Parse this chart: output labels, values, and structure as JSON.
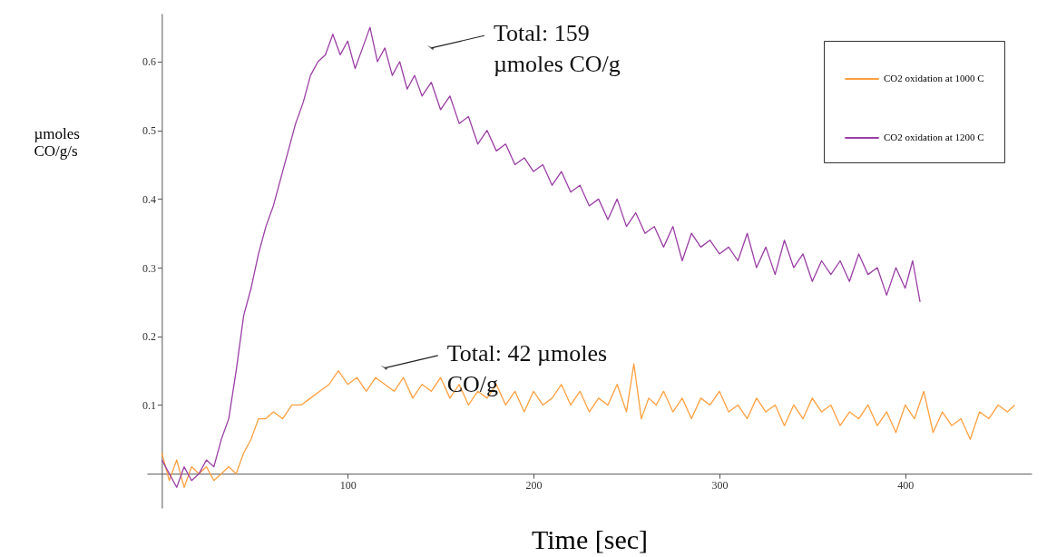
{
  "chart_data": {
    "type": "line",
    "xlabel": "Time [sec]",
    "ylabel": "µmoles\nCO/g/s",
    "xlim": [
      -8,
      468
    ],
    "ylim": [
      -0.05,
      0.67
    ],
    "xticks": [
      100,
      200,
      300,
      400
    ],
    "yticks": [
      0.1,
      0.2,
      0.3,
      0.4,
      0.5,
      0.6
    ],
    "grid": false,
    "legend": "top right",
    "series": [
      {
        "name": "CO2 oxidation at 1000 C",
        "color": "#ffa040",
        "x": [
          0,
          4,
          8,
          12,
          16,
          20,
          24,
          28,
          32,
          36,
          40,
          44,
          48,
          52,
          56,
          60,
          65,
          70,
          75,
          80,
          85,
          90,
          95,
          100,
          105,
          110,
          115,
          120,
          125,
          130,
          135,
          140,
          145,
          150,
          155,
          160,
          165,
          170,
          175,
          180,
          185,
          190,
          195,
          200,
          205,
          210,
          215,
          220,
          225,
          230,
          235,
          240,
          245,
          250,
          254,
          258,
          262,
          266,
          270,
          275,
          280,
          285,
          290,
          295,
          300,
          305,
          310,
          315,
          320,
          325,
          330,
          335,
          340,
          345,
          350,
          355,
          360,
          365,
          370,
          375,
          380,
          385,
          390,
          395,
          400,
          405,
          410,
          415,
          420,
          425,
          430,
          435,
          440,
          445,
          450,
          455,
          459
        ],
        "values": [
          0.03,
          -0.01,
          0.02,
          -0.02,
          0.01,
          0.0,
          0.01,
          -0.01,
          0.0,
          0.01,
          0.0,
          0.03,
          0.05,
          0.08,
          0.08,
          0.09,
          0.08,
          0.1,
          0.1,
          0.11,
          0.12,
          0.13,
          0.15,
          0.13,
          0.14,
          0.12,
          0.14,
          0.13,
          0.12,
          0.14,
          0.11,
          0.13,
          0.12,
          0.14,
          0.11,
          0.13,
          0.1,
          0.12,
          0.11,
          0.13,
          0.1,
          0.12,
          0.09,
          0.12,
          0.1,
          0.11,
          0.13,
          0.1,
          0.12,
          0.09,
          0.11,
          0.1,
          0.13,
          0.09,
          0.16,
          0.08,
          0.11,
          0.1,
          0.12,
          0.09,
          0.11,
          0.08,
          0.11,
          0.1,
          0.12,
          0.09,
          0.1,
          0.08,
          0.11,
          0.09,
          0.1,
          0.07,
          0.1,
          0.08,
          0.11,
          0.09,
          0.1,
          0.07,
          0.09,
          0.08,
          0.1,
          0.07,
          0.09,
          0.06,
          0.1,
          0.08,
          0.12,
          0.06,
          0.09,
          0.07,
          0.08,
          0.05,
          0.09,
          0.08,
          0.1,
          0.09,
          0.1
        ]
      },
      {
        "name": "CO2 oxidation at 1200 C",
        "color": "#9b3fa6",
        "x": [
          0,
          4,
          8,
          12,
          16,
          20,
          24,
          28,
          32,
          36,
          40,
          44,
          48,
          52,
          56,
          60,
          64,
          68,
          72,
          76,
          80,
          84,
          88,
          92,
          96,
          100,
          104,
          108,
          112,
          116,
          120,
          124,
          128,
          132,
          136,
          140,
          145,
          150,
          155,
          160,
          165,
          170,
          175,
          180,
          185,
          190,
          195,
          200,
          205,
          210,
          215,
          220,
          225,
          230,
          235,
          240,
          245,
          250,
          255,
          260,
          265,
          270,
          275,
          280,
          285,
          290,
          295,
          300,
          305,
          310,
          315,
          320,
          325,
          330,
          335,
          340,
          345,
          350,
          355,
          360,
          365,
          370,
          375,
          380,
          385,
          390,
          395,
          400,
          404,
          408
        ],
        "values": [
          0.02,
          0.0,
          -0.02,
          0.01,
          -0.01,
          0.0,
          0.02,
          0.01,
          0.05,
          0.08,
          0.15,
          0.23,
          0.27,
          0.32,
          0.36,
          0.39,
          0.43,
          0.47,
          0.51,
          0.54,
          0.58,
          0.6,
          0.61,
          0.64,
          0.61,
          0.63,
          0.59,
          0.62,
          0.65,
          0.6,
          0.62,
          0.58,
          0.6,
          0.56,
          0.58,
          0.55,
          0.57,
          0.53,
          0.55,
          0.51,
          0.52,
          0.48,
          0.5,
          0.47,
          0.48,
          0.45,
          0.46,
          0.44,
          0.45,
          0.42,
          0.44,
          0.41,
          0.42,
          0.39,
          0.4,
          0.37,
          0.4,
          0.36,
          0.38,
          0.35,
          0.36,
          0.33,
          0.36,
          0.31,
          0.35,
          0.33,
          0.34,
          0.32,
          0.33,
          0.31,
          0.35,
          0.3,
          0.33,
          0.29,
          0.34,
          0.3,
          0.32,
          0.28,
          0.31,
          0.29,
          0.31,
          0.28,
          0.32,
          0.29,
          0.3,
          0.26,
          0.3,
          0.27,
          0.31,
          0.25
        ]
      }
    ],
    "annotations": [
      {
        "text": "Total: 159\nµmoles CO/g",
        "x": 145,
        "y": 0.62
      },
      {
        "text": "Total: 42 µmoles\nCO/g",
        "x": 120,
        "y": 0.154
      }
    ]
  }
}
